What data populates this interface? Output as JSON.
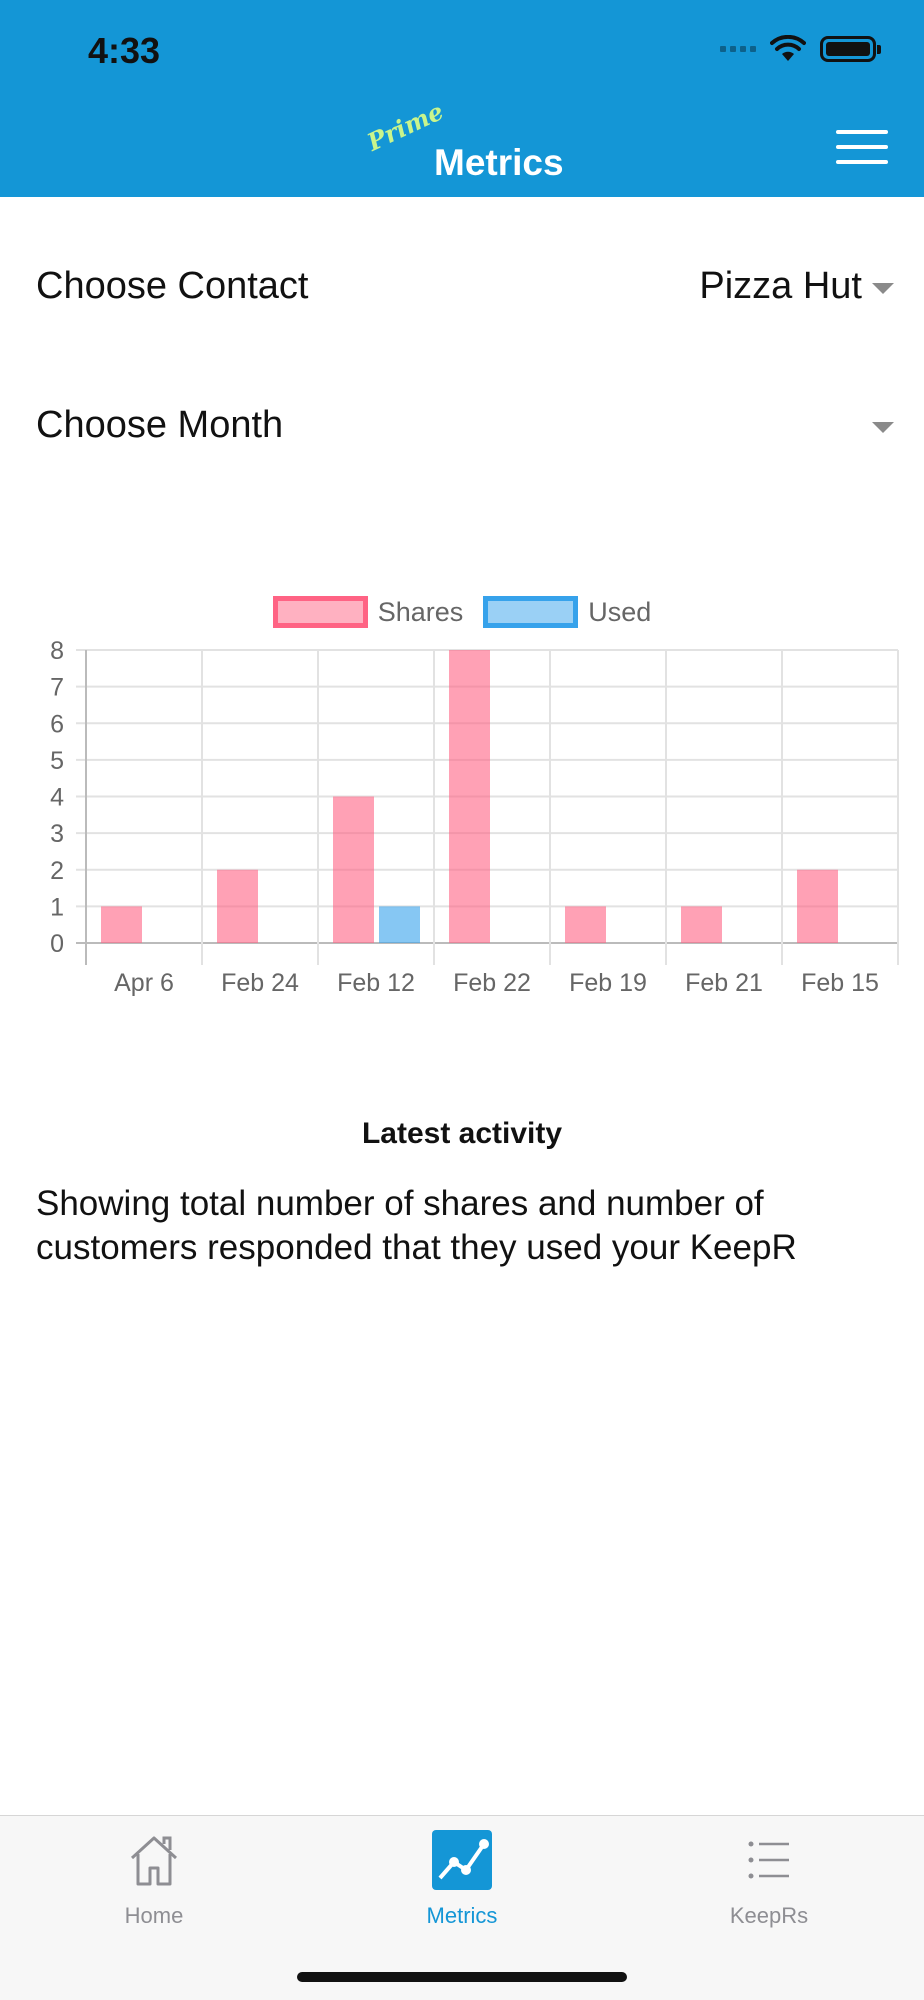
{
  "status_bar": {
    "time": "4:33"
  },
  "header": {
    "brand": "Prime",
    "title": "Metrics"
  },
  "filters": {
    "contact_label": "Choose Contact",
    "contact_value": "Pizza Hut",
    "month_label": "Choose Month",
    "month_value": ""
  },
  "colors": {
    "header": "#1496d6",
    "shares": "#ff6384",
    "used": "#36a2eb"
  },
  "chart_data": {
    "type": "bar",
    "categories": [
      "Apr 6",
      "Feb 24",
      "Feb 12",
      "Feb 22",
      "Feb 19",
      "Feb 21",
      "Feb 15"
    ],
    "series": [
      {
        "name": "Shares",
        "values": [
          1,
          2,
          4,
          8,
          1,
          1,
          2
        ]
      },
      {
        "name": "Used",
        "values": [
          0,
          0,
          1,
          0,
          0,
          0,
          0
        ]
      }
    ],
    "yticks": [
      "0",
      "1",
      "2",
      "3",
      "4",
      "5",
      "6",
      "7",
      "8"
    ],
    "ylim": [
      0,
      8
    ],
    "grid": true,
    "legend": "top-center"
  },
  "activity": {
    "title": "Latest activity",
    "text": "Showing total number of shares and number of customers responded that they used your KeepR"
  },
  "tabs": [
    {
      "label": "Home",
      "icon": "house-icon",
      "active": false
    },
    {
      "label": "Metrics",
      "icon": "chart-icon",
      "active": true
    },
    {
      "label": "KeepRs",
      "icon": "list-icon",
      "active": false
    }
  ]
}
